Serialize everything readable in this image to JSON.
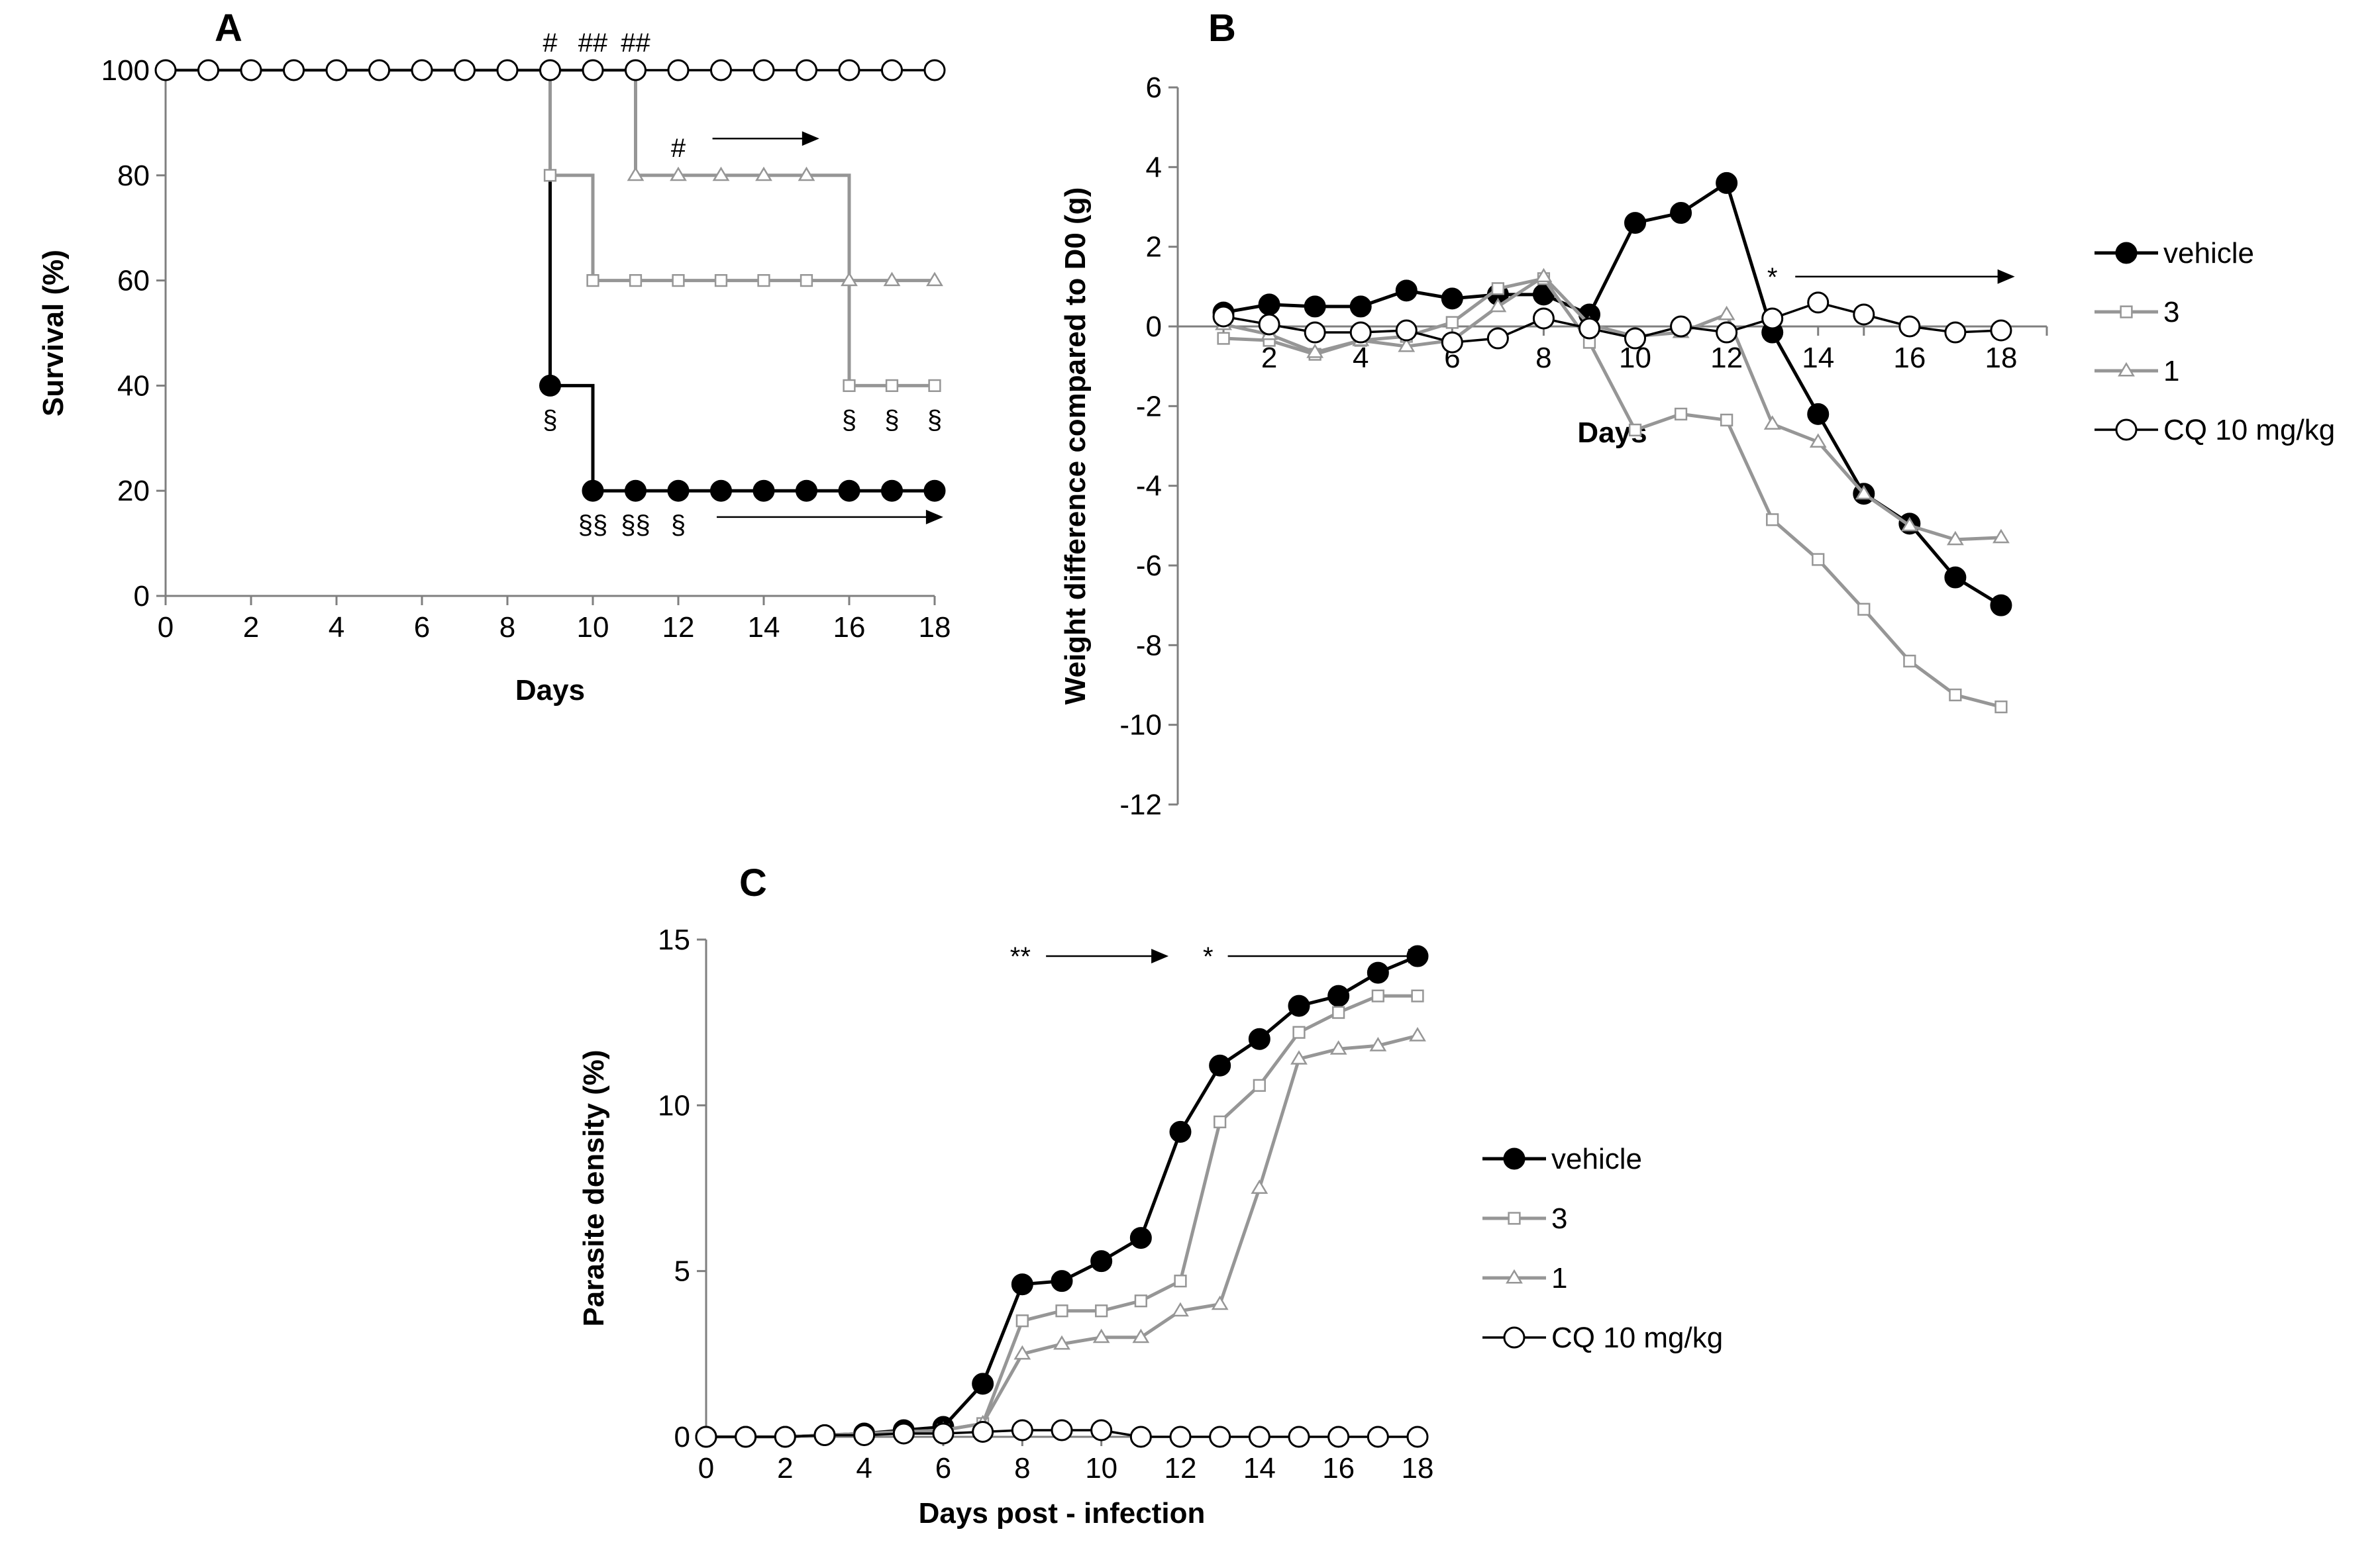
{
  "colors": {
    "vehicle": "#000000",
    "gray": "#969696",
    "cq": "#000000"
  },
  "chart_data": [
    {
      "panel": "A",
      "type": "line",
      "xlabel": "Days",
      "ylabel": "Survival (%)",
      "xlim": [
        0,
        18
      ],
      "ylim": [
        0,
        100
      ],
      "xticks": [
        0,
        2,
        4,
        6,
        8,
        10,
        12,
        14,
        16,
        18
      ],
      "yticks": [
        0,
        20,
        40,
        60,
        80,
        100
      ],
      "step": true,
      "series": [
        {
          "name": "vehicle",
          "color": "#000000",
          "marker": "circle-filled",
          "x": [
            0,
            1,
            2,
            3,
            4,
            5,
            6,
            7,
            8,
            9,
            10,
            11,
            12,
            13,
            14,
            15,
            16,
            17,
            18
          ],
          "y": [
            100,
            100,
            100,
            100,
            100,
            100,
            100,
            100,
            100,
            40,
            20,
            20,
            20,
            20,
            20,
            20,
            20,
            20,
            20
          ],
          "markers_from": 9
        },
        {
          "name": "3",
          "color": "#969696",
          "marker": "square-open",
          "x": [
            0,
            1,
            2,
            3,
            4,
            5,
            6,
            7,
            8,
            9,
            10,
            11,
            12,
            13,
            14,
            15,
            16,
            17,
            18
          ],
          "y": [
            100,
            100,
            100,
            100,
            100,
            100,
            100,
            100,
            100,
            80,
            60,
            60,
            60,
            60,
            60,
            60,
            40,
            40,
            40
          ],
          "markers_from": 9
        },
        {
          "name": "1",
          "color": "#969696",
          "marker": "triangle-open",
          "x": [
            0,
            1,
            2,
            3,
            4,
            5,
            6,
            7,
            8,
            9,
            10,
            11,
            12,
            13,
            14,
            15,
            16,
            17,
            18
          ],
          "y": [
            100,
            100,
            100,
            100,
            100,
            100,
            100,
            100,
            100,
            100,
            100,
            80,
            80,
            80,
            80,
            80,
            60,
            60,
            60
          ],
          "markers_from": 11
        },
        {
          "name": "CQ 10 mg/kg",
          "color": "#000000",
          "marker": "circle-open",
          "x": [
            0,
            1,
            2,
            3,
            4,
            5,
            6,
            7,
            8,
            9,
            10,
            11,
            12,
            13,
            14,
            15,
            16,
            17,
            18
          ],
          "y": [
            100,
            100,
            100,
            100,
            100,
            100,
            100,
            100,
            100,
            100,
            100,
            100,
            100,
            100,
            100,
            100,
            100,
            100,
            100
          ],
          "markers_from": 0
        }
      ],
      "annotations": [
        {
          "text": "#",
          "x": 9,
          "y": 100,
          "pos": "above"
        },
        {
          "text": "##",
          "x": 10,
          "y": 100,
          "pos": "above"
        },
        {
          "text": "##",
          "x": 11,
          "y": 100,
          "pos": "above"
        },
        {
          "text": "#",
          "x": 12,
          "y": 80,
          "pos": "above"
        },
        {
          "text": "§",
          "x": 9,
          "y": 40,
          "pos": "below"
        },
        {
          "text": "§§",
          "x": 10,
          "y": 20,
          "pos": "below"
        },
        {
          "text": "§§",
          "x": 11,
          "y": 20,
          "pos": "below"
        },
        {
          "text": "§",
          "x": 12,
          "y": 20,
          "pos": "below"
        },
        {
          "text": "§",
          "x": 16,
          "y": 40,
          "pos": "below"
        },
        {
          "text": "§",
          "x": 17,
          "y": 40,
          "pos": "below"
        },
        {
          "text": "§",
          "x": 18,
          "y": 40,
          "pos": "below"
        }
      ],
      "arrows": [
        {
          "x1": 12.8,
          "x2": 15.3,
          "y": 87
        },
        {
          "x1": 12.9,
          "x2": 18.2,
          "y": 15
        }
      ]
    },
    {
      "panel": "B",
      "type": "line",
      "xlabel": "Days",
      "ylabel": "Weight difference compared to D0 (g)",
      "xlim": [
        0,
        19
      ],
      "ylim": [
        -12,
        6
      ],
      "xticks": [
        2,
        4,
        6,
        8,
        10,
        12,
        14,
        16,
        18
      ],
      "yticks": [
        -12,
        -10,
        -8,
        -6,
        -4,
        -2,
        0,
        2,
        4,
        6
      ],
      "legend": "right",
      "series": [
        {
          "name": "vehicle",
          "color": "#000000",
          "marker": "circle-filled",
          "x": [
            1,
            2,
            3,
            4,
            5,
            6,
            7,
            8,
            9,
            10,
            11,
            12,
            13,
            14,
            15,
            16,
            17,
            18
          ],
          "y": [
            0.35,
            0.55,
            0.5,
            0.5,
            0.9,
            0.7,
            0.8,
            0.8,
            0.3,
            2.6,
            2.85,
            3.6,
            -0.15,
            -2.2,
            -4.2,
            -4.95,
            -6.3,
            -7.0
          ]
        },
        {
          "name": "3",
          "color": "#969696",
          "marker": "square-open",
          "x": [
            1,
            2,
            3,
            4,
            5,
            6,
            7,
            8,
            9,
            10,
            11,
            12,
            13,
            14,
            15,
            16,
            17,
            18
          ],
          "y": [
            -0.3,
            -0.35,
            -0.7,
            -0.35,
            -0.25,
            0.1,
            0.95,
            1.2,
            -0.4,
            -2.6,
            -2.2,
            -2.35,
            -4.85,
            -5.85,
            -7.1,
            -8.4,
            -9.25,
            -9.55
          ]
        },
        {
          "name": "1",
          "color": "#969696",
          "marker": "triangle-open",
          "x": [
            1,
            2,
            3,
            4,
            5,
            6,
            7,
            8,
            9,
            10,
            11,
            12,
            13,
            14,
            15,
            16,
            17,
            18
          ],
          "y": [
            0.05,
            -0.2,
            -0.65,
            -0.35,
            -0.5,
            -0.35,
            0.5,
            1.25,
            0.05,
            -0.25,
            -0.15,
            0.3,
            -2.45,
            -2.9,
            -4.2,
            -5.0,
            -5.35,
            -5.3
          ]
        },
        {
          "name": "CQ 10 mg/kg",
          "color": "#000000",
          "marker": "circle-open",
          "x": [
            1,
            2,
            3,
            4,
            5,
            6,
            7,
            8,
            9,
            10,
            11,
            12,
            13,
            14,
            15,
            16,
            17,
            18
          ],
          "y": [
            0.25,
            0.05,
            -0.15,
            -0.15,
            -0.1,
            -0.4,
            -0.3,
            0.2,
            -0.05,
            -0.3,
            0.0,
            -0.15,
            0.2,
            0.6,
            0.3,
            0.0,
            -0.15,
            -0.1
          ]
        }
      ],
      "annotations": [
        {
          "text": "*",
          "x": 13,
          "y": 1.25
        }
      ],
      "arrows": [
        {
          "x1": 13.5,
          "x2": 18.3,
          "y": 1.25
        }
      ]
    },
    {
      "panel": "C",
      "type": "line",
      "xlabel": "Days post - infection",
      "ylabel": "Parasite density (%)",
      "xlim": [
        0,
        18
      ],
      "ylim": [
        0,
        15
      ],
      "xticks": [
        0,
        2,
        4,
        6,
        8,
        10,
        12,
        14,
        16,
        18
      ],
      "yticks": [
        0,
        5,
        10,
        15
      ],
      "legend": "right",
      "series": [
        {
          "name": "vehicle",
          "color": "#000000",
          "marker": "circle-filled",
          "x": [
            0,
            1,
            2,
            3,
            4,
            5,
            6,
            7,
            8,
            9,
            10,
            11,
            12,
            13,
            14,
            15,
            16,
            17,
            18
          ],
          "y": [
            0,
            0,
            0,
            0.05,
            0.1,
            0.2,
            0.3,
            1.6,
            4.6,
            4.7,
            5.3,
            6.0,
            9.2,
            11.2,
            12.0,
            13.0,
            13.3,
            14.0,
            14.5
          ]
        },
        {
          "name": "3",
          "color": "#969696",
          "marker": "square-open",
          "x": [
            0,
            1,
            2,
            3,
            4,
            5,
            6,
            7,
            8,
            9,
            10,
            11,
            12,
            13,
            14,
            15,
            16,
            17,
            18
          ],
          "y": [
            0,
            0,
            0,
            0.05,
            0.1,
            0.15,
            0.2,
            0.4,
            3.5,
            3.8,
            3.8,
            4.1,
            4.7,
            9.5,
            10.6,
            12.2,
            12.8,
            13.3,
            13.3
          ]
        },
        {
          "name": "1",
          "color": "#969696",
          "marker": "triangle-open",
          "x": [
            0,
            1,
            2,
            3,
            4,
            5,
            6,
            7,
            8,
            9,
            10,
            11,
            12,
            13,
            14,
            15,
            16,
            17,
            18
          ],
          "y": [
            0,
            0,
            0,
            0.05,
            0.1,
            0.15,
            0.2,
            0.4,
            2.5,
            2.8,
            3.0,
            3.0,
            3.8,
            4.0,
            7.5,
            11.4,
            11.7,
            11.8,
            12.1
          ]
        },
        {
          "name": "CQ 10 mg/kg",
          "color": "#000000",
          "marker": "circle-open",
          "x": [
            0,
            1,
            2,
            3,
            4,
            5,
            6,
            7,
            8,
            9,
            10,
            11,
            12,
            13,
            14,
            15,
            16,
            17,
            18
          ],
          "y": [
            0,
            0,
            0,
            0.05,
            0.05,
            0.1,
            0.1,
            0.15,
            0.2,
            0.2,
            0.2,
            0,
            0,
            0,
            0,
            0,
            0,
            0,
            0
          ]
        }
      ],
      "annotations": [
        {
          "text": "**",
          "x": 7.95,
          "y": 14.5
        },
        {
          "text": "*",
          "x": 12.7,
          "y": 14.5
        }
      ],
      "arrows": [
        {
          "x1": 8.6,
          "x2": 11.7,
          "y": 14.5
        },
        {
          "x1": 13.2,
          "x2": 18.2,
          "y": 14.5
        }
      ]
    }
  ]
}
